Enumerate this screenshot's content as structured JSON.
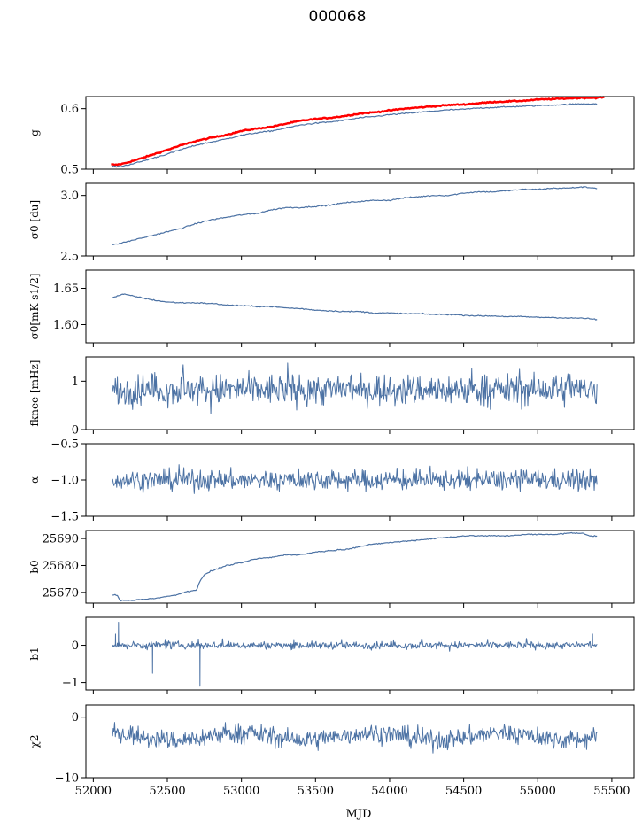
{
  "figure": {
    "title": "000068",
    "xlabel": "MJD"
  },
  "colors": {
    "series": "#4c72a4",
    "fit": "#ff0000"
  },
  "chart_data": [
    {
      "type": "line",
      "id": "g",
      "ylabel": "g",
      "xlim": [
        51950,
        55650
      ],
      "ylim": [
        0.5,
        0.62
      ],
      "yticks": [
        0.5,
        0.6
      ],
      "ytick_labels": [
        "0.5",
        "0.6"
      ],
      "series": [
        {
          "color": "#ff0000",
          "width": 2.5,
          "x": [
            52120,
            52150,
            52200,
            52300,
            52400,
            52500,
            52600,
            52700,
            52800,
            52900,
            53000,
            53100,
            53200,
            53300,
            53400,
            53500,
            53600,
            53700,
            53800,
            53900,
            54000,
            54100,
            54200,
            54300,
            54400,
            54500,
            54600,
            54700,
            54800,
            54900,
            55000,
            55100,
            55200,
            55300,
            55400,
            55450
          ],
          "y": [
            0.508,
            0.507,
            0.509,
            0.516,
            0.524,
            0.532,
            0.54,
            0.547,
            0.552,
            0.557,
            0.563,
            0.567,
            0.57,
            0.575,
            0.58,
            0.583,
            0.585,
            0.588,
            0.592,
            0.594,
            0.597,
            0.6,
            0.602,
            0.604,
            0.606,
            0.607,
            0.609,
            0.611,
            0.612,
            0.613,
            0.615,
            0.616,
            0.617,
            0.618,
            0.618,
            0.619
          ]
        },
        {
          "color": "#4c72a4",
          "width": 1.2,
          "x": [
            52130,
            52150,
            52200,
            52300,
            52400,
            52500,
            52600,
            52700,
            52800,
            52900,
            53000,
            53100,
            53200,
            53300,
            53400,
            53500,
            53600,
            53700,
            53800,
            53900,
            54000,
            54100,
            54200,
            54300,
            54400,
            54500,
            54600,
            54700,
            54800,
            54900,
            55000,
            55100,
            55200,
            55300,
            55400
          ],
          "y": [
            0.505,
            0.504,
            0.505,
            0.511,
            0.518,
            0.525,
            0.533,
            0.54,
            0.545,
            0.55,
            0.556,
            0.56,
            0.563,
            0.568,
            0.573,
            0.576,
            0.578,
            0.581,
            0.585,
            0.587,
            0.59,
            0.592,
            0.594,
            0.596,
            0.598,
            0.599,
            0.601,
            0.602,
            0.603,
            0.604,
            0.605,
            0.606,
            0.607,
            0.608,
            0.608
          ]
        }
      ]
    },
    {
      "type": "line",
      "id": "sigma0_du",
      "ylabel": "σ0 [du]",
      "xlim": [
        51950,
        55650
      ],
      "ylim": [
        2.5,
        3.1
      ],
      "yticks": [
        2.5,
        3.0
      ],
      "ytick_labels": [
        "2.5",
        "3.0"
      ],
      "series": [
        {
          "color": "#4c72a4",
          "width": 1.2,
          "x": [
            52130,
            52200,
            52300,
            52400,
            52500,
            52600,
            52700,
            52800,
            52900,
            53000,
            53100,
            53200,
            53300,
            53400,
            53500,
            53600,
            53700,
            53800,
            53900,
            54000,
            54100,
            54200,
            54300,
            54400,
            54500,
            54600,
            54700,
            54800,
            54900,
            55000,
            55100,
            55200,
            55300,
            55400
          ],
          "y": [
            2.59,
            2.61,
            2.64,
            2.67,
            2.7,
            2.73,
            2.77,
            2.8,
            2.82,
            2.84,
            2.85,
            2.88,
            2.9,
            2.9,
            2.91,
            2.92,
            2.94,
            2.95,
            2.96,
            2.96,
            2.98,
            2.99,
            3.0,
            3.0,
            3.02,
            3.03,
            3.03,
            3.04,
            3.05,
            3.05,
            3.06,
            3.06,
            3.07,
            3.06
          ]
        }
      ]
    },
    {
      "type": "line",
      "id": "sigma0_mK",
      "ylabel": "σ0[mK s1/2]",
      "xlim": [
        51950,
        55650
      ],
      "ylim": [
        1.575,
        1.675
      ],
      "yticks": [
        1.6,
        1.65
      ],
      "ytick_labels": [
        "1.60",
        "1.65"
      ],
      "series": [
        {
          "color": "#4c72a4",
          "width": 1.2,
          "x": [
            52130,
            52200,
            52300,
            52400,
            52500,
            52600,
            52700,
            52800,
            52900,
            53000,
            53100,
            53200,
            53300,
            53400,
            53500,
            53600,
            53700,
            53800,
            53900,
            54000,
            54100,
            54200,
            54300,
            54400,
            54500,
            54600,
            54700,
            54800,
            54900,
            55000,
            55100,
            55200,
            55300,
            55400
          ],
          "y": [
            1.637,
            1.642,
            1.638,
            1.634,
            1.631,
            1.63,
            1.63,
            1.629,
            1.627,
            1.626,
            1.625,
            1.625,
            1.623,
            1.622,
            1.62,
            1.619,
            1.618,
            1.618,
            1.616,
            1.616,
            1.615,
            1.615,
            1.614,
            1.614,
            1.613,
            1.612,
            1.612,
            1.611,
            1.611,
            1.61,
            1.61,
            1.609,
            1.609,
            1.607
          ]
        }
      ]
    },
    {
      "type": "line",
      "id": "fknee",
      "ylabel": "fknee [mHz]",
      "xlim": [
        51950,
        55650
      ],
      "ylim": [
        0,
        1.5
      ],
      "yticks": [
        0,
        1
      ],
      "ytick_labels": [
        "0",
        "1"
      ],
      "series": [
        {
          "color": "#4c72a4",
          "width": 1.0,
          "noise": {
            "mean": 0.82,
            "amp": 0.16,
            "spikes": 0.35
          },
          "x": [
            52130,
            55400
          ],
          "y": [
            0.82,
            0.82
          ]
        }
      ]
    },
    {
      "type": "line",
      "id": "alpha",
      "ylabel": "α",
      "xlim": [
        51950,
        55650
      ],
      "ylim": [
        -1.5,
        -0.5
      ],
      "yticks": [
        -1.5,
        -1.0,
        -0.5
      ],
      "ytick_labels": [
        "−1.5",
        "−1.0",
        "−0.5"
      ],
      "series": [
        {
          "color": "#4c72a4",
          "width": 1.0,
          "noise": {
            "mean": -1.0,
            "amp": 0.07,
            "spikes": 0.13
          },
          "x": [
            52130,
            55400
          ],
          "y": [
            -1.0,
            -1.0
          ]
        }
      ]
    },
    {
      "type": "line",
      "id": "b0",
      "ylabel": "b0",
      "xlim": [
        51950,
        55650
      ],
      "ylim": [
        25666,
        25693
      ],
      "yticks": [
        25670,
        25680,
        25690
      ],
      "ytick_labels": [
        "25670",
        "25680",
        "25690"
      ],
      "series": [
        {
          "color": "#4c72a4",
          "width": 1.2,
          "x": [
            52130,
            52160,
            52180,
            52250,
            52350,
            52450,
            52550,
            52650,
            52700,
            52710,
            52730,
            52760,
            52800,
            52900,
            53000,
            53100,
            53200,
            53300,
            53400,
            53500,
            53600,
            53700,
            53800,
            53900,
            54000,
            54100,
            54200,
            54300,
            54400,
            54500,
            54600,
            54700,
            54800,
            54900,
            55000,
            55100,
            55200,
            55250,
            55300,
            55350,
            55400
          ],
          "y": [
            25669,
            25669,
            25667,
            25667,
            25667.5,
            25668,
            25669,
            25670.5,
            25671,
            25673,
            25675,
            25677,
            25678,
            25680,
            25681,
            25682.5,
            25683,
            25684,
            25684,
            25685,
            25685.5,
            25686,
            25687,
            25688,
            25688.5,
            25689,
            25689.5,
            25690,
            25690.5,
            25691,
            25691,
            25691,
            25691,
            25691.5,
            25691.5,
            25691.5,
            25692,
            25692,
            25692,
            25691,
            25691
          ]
        }
      ]
    },
    {
      "type": "line",
      "id": "b1",
      "ylabel": "b1",
      "xlim": [
        51950,
        55650
      ],
      "ylim": [
        -1.2,
        0.75
      ],
      "yticks": [
        -1,
        0
      ],
      "ytick_labels": [
        "−1",
        "0"
      ],
      "series": [
        {
          "color": "#4c72a4",
          "width": 1.0,
          "noise": {
            "mean": 0.0,
            "amp": 0.05,
            "spikes": 0.12
          },
          "x": [
            52130,
            55400
          ],
          "y": [
            0.0,
            0.0
          ],
          "features": [
            {
              "x": 52170,
              "y": 0.62
            },
            {
              "x": 52400,
              "y": -0.75
            },
            {
              "x": 52720,
              "y": -1.1
            },
            {
              "x": 52150,
              "y": 0.3
            },
            {
              "x": 55370,
              "y": 0.3
            }
          ]
        }
      ]
    },
    {
      "type": "line",
      "id": "chi2",
      "ylabel": "χ2",
      "xlim": [
        51950,
        55650
      ],
      "ylim": [
        -10,
        2
      ],
      "yticks": [
        -10,
        0
      ],
      "ytick_labels": [
        "−10",
        "0"
      ],
      "series": [
        {
          "color": "#4c72a4",
          "width": 1.0,
          "noise": {
            "mean": -3.2,
            "amp": 0.8,
            "spikes": 1.3,
            "wave": 1.0
          },
          "x": [
            52130,
            55400
          ],
          "y": [
            -3.2,
            -3.2
          ]
        }
      ]
    }
  ],
  "xaxis": {
    "ticks": [
      52000,
      52500,
      53000,
      53500,
      54000,
      54500,
      55000,
      55500
    ],
    "tick_labels": [
      "52000",
      "52500",
      "53000",
      "53500",
      "54000",
      "54500",
      "55000",
      "55500"
    ]
  }
}
